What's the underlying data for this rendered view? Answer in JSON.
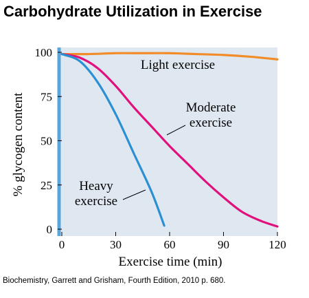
{
  "page": {
    "title": "Carbohydrate Utilization in Exercise",
    "caption": "Biochemistry, Garrett and Grisham, Fourth Edition, 2010 p. 680."
  },
  "chart_data": {
    "type": "line",
    "title": "Carbohydrate Utilization in Exercise",
    "xlabel": "Exercise time (min)",
    "ylabel": "% glycogen content",
    "xlim": [
      0,
      120
    ],
    "ylim": [
      0,
      100
    ],
    "xticks": [
      0,
      30,
      60,
      90,
      120
    ],
    "yticks": [
      0,
      25,
      50,
      75,
      100
    ],
    "grid": false,
    "background": "#dfe8f1",
    "series": [
      {
        "name": "Light exercise",
        "color": "#f28c28",
        "x": [
          0,
          15,
          30,
          45,
          60,
          75,
          90,
          105,
          120
        ],
        "y": [
          99,
          99,
          99.5,
          99.5,
          99.5,
          99,
          98.5,
          97.5,
          96
        ]
      },
      {
        "name": "Moderate exercise",
        "color": "#e0107c",
        "x": [
          0,
          10,
          20,
          30,
          40,
          50,
          60,
          70,
          80,
          90,
          100,
          110,
          120
        ],
        "y": [
          99,
          97,
          91,
          81,
          69,
          58,
          47,
          37,
          27,
          18,
          10,
          5,
          1.5
        ]
      },
      {
        "name": "Heavy exercise",
        "color": "#2a8fd3",
        "x": [
          0,
          10,
          20,
          30,
          40,
          50,
          57
        ],
        "y": [
          99,
          95,
          83,
          65,
          43,
          21,
          2
        ]
      }
    ],
    "annotations": [
      {
        "lines": [
          "Light exercise"
        ],
        "series": 0
      },
      {
        "lines": [
          "Moderate",
          "exercise"
        ],
        "series": 1
      },
      {
        "lines": [
          "Heavy",
          "exercise"
        ],
        "series": 2
      }
    ]
  }
}
